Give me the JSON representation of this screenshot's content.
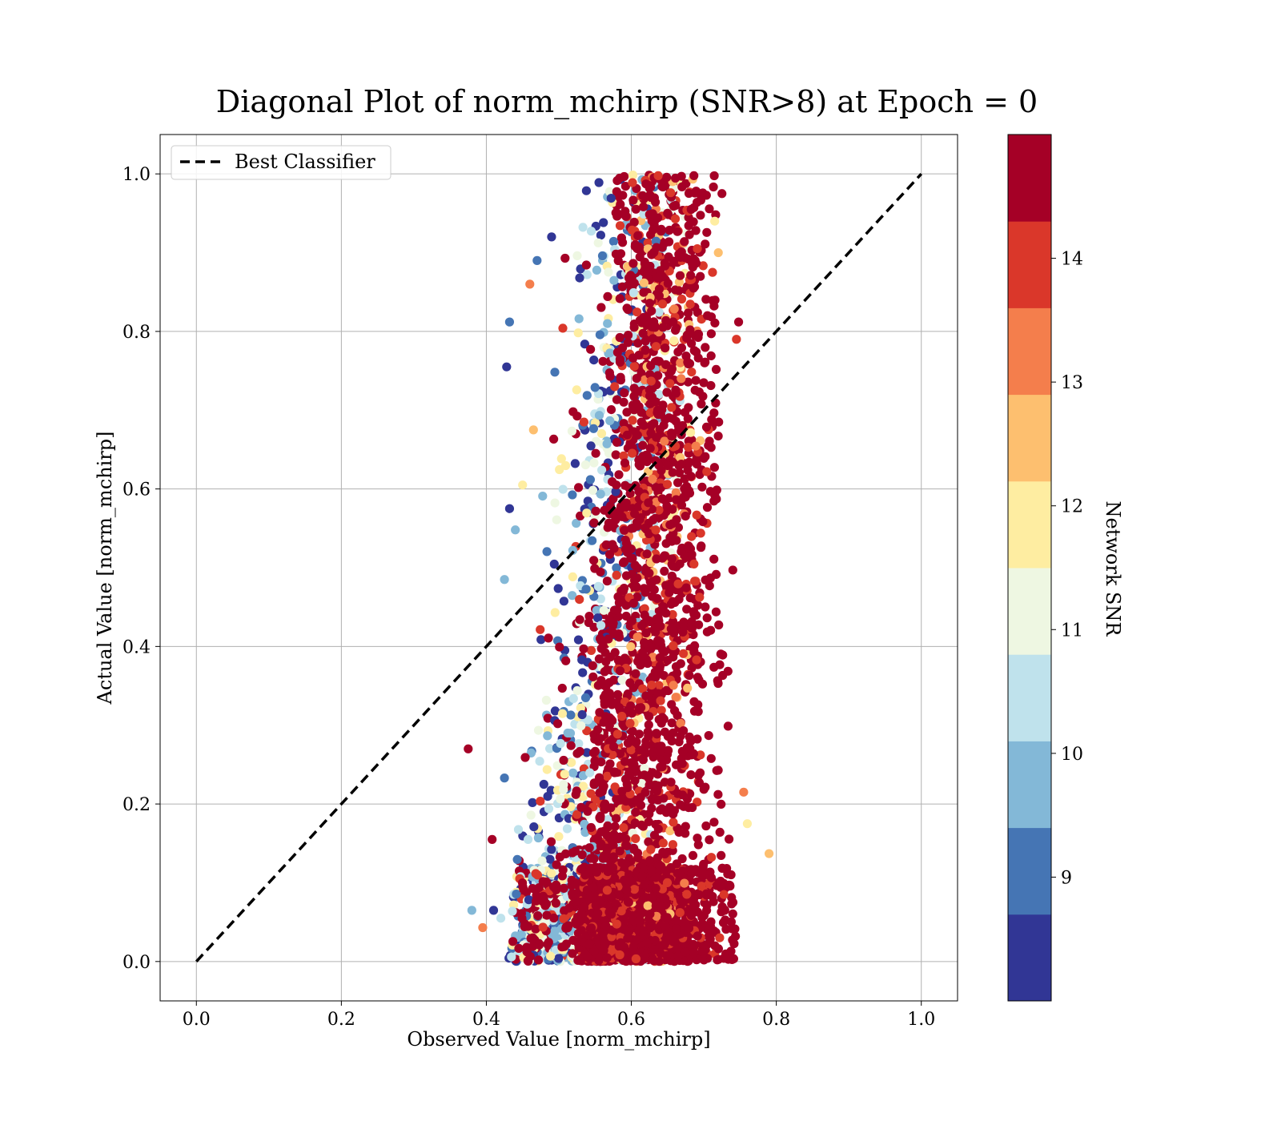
{
  "chart_data": {
    "type": "scatter",
    "title": "Diagonal Plot of norm_mchirp (SNR>8) at Epoch = 0",
    "xlabel": "Observed Value [norm_mchirp]",
    "ylabel": "Actual Value [norm_mchirp]",
    "xlim": [
      -0.05,
      1.05
    ],
    "ylim": [
      -0.05,
      1.05
    ],
    "x_ticks": [
      "0.0",
      "0.2",
      "0.4",
      "0.6",
      "0.8",
      "1.0"
    ],
    "y_ticks": [
      "0.0",
      "0.2",
      "0.4",
      "0.6",
      "0.8",
      "1.0"
    ],
    "grid": true,
    "legend": {
      "placement": "upper-left",
      "entries": [
        {
          "label": "Best Classifier",
          "style": "dashed",
          "color": "#000000"
        }
      ]
    },
    "reference_line": {
      "label": "Best Classifier",
      "x": [
        0.0,
        1.0
      ],
      "y": [
        0.0,
        1.0
      ]
    },
    "colorbar": {
      "label": "Network SNR",
      "range": [
        8,
        15
      ],
      "ticks": [
        "9",
        "10",
        "11",
        "12",
        "13",
        "14"
      ],
      "colors": [
        "#313695",
        "#4575b4",
        "#83b8d7",
        "#bfe2ec",
        "#eef7e2",
        "#feeda1",
        "#fdbf6f",
        "#f47e4c",
        "#da372a",
        "#a50026"
      ]
    },
    "series": [
      {
        "description_points": [
          [
            0.375,
            0.27,
            14.3
          ],
          [
            0.432,
            0.812,
            9.2
          ],
          [
            0.428,
            0.755,
            8.2
          ],
          [
            0.425,
            0.485,
            9.4
          ],
          [
            0.425,
            0.233,
            9.1
          ],
          [
            0.38,
            0.065,
            10.0
          ],
          [
            0.79,
            0.137,
            12.7
          ],
          [
            0.76,
            0.175,
            12.0
          ],
          [
            0.755,
            0.215,
            13.2
          ],
          [
            0.748,
            0.812,
            14.3
          ],
          [
            0.745,
            0.79,
            13.8
          ],
          [
            0.74,
            0.497,
            14.6
          ],
          [
            0.725,
            0.975,
            14.8
          ],
          [
            0.715,
            0.94,
            11.8
          ],
          [
            0.72,
            0.9,
            12.3
          ],
          [
            0.712,
            0.875,
            14.2
          ],
          [
            0.705,
            0.82,
            14.7
          ],
          [
            0.49,
            0.92,
            8.3
          ],
          [
            0.47,
            0.89,
            9.3
          ],
          [
            0.46,
            0.86,
            13.2
          ],
          [
            0.465,
            0.675,
            12.6
          ],
          [
            0.432,
            0.575,
            8.3
          ],
          [
            0.44,
            0.548,
            9.8
          ],
          [
            0.45,
            0.605,
            11.8
          ],
          [
            0.408,
            0.155,
            14.4
          ],
          [
            0.395,
            0.043,
            13.0
          ],
          [
            0.41,
            0.065,
            8.4
          ],
          [
            0.42,
            0.055,
            10.5
          ]
        ]
      }
    ]
  }
}
